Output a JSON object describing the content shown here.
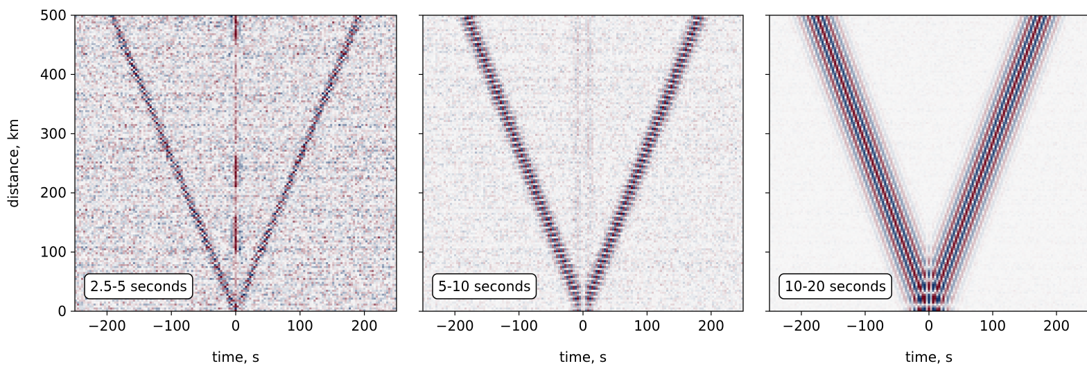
{
  "chart_data": [
    {
      "type": "heatmap",
      "label": "2.5-5 seconds",
      "xlabel": "time, s",
      "ylabel": "distance, km",
      "xlim": [
        -250,
        250
      ],
      "ylim": [
        0,
        500
      ],
      "xticks": [
        -200,
        -100,
        0,
        100,
        200
      ],
      "yticks": [
        0,
        100,
        200,
        300,
        400,
        500
      ],
      "colormap": "diverging red-white-blue",
      "moveout_velocity_km_s": 2.6,
      "noise_level": 0.55,
      "central_arrival": true,
      "wavelet_period_s": 4
    },
    {
      "type": "heatmap",
      "label": "5-10 seconds",
      "xlabel": "time, s",
      "ylabel": "",
      "xlim": [
        -250,
        250
      ],
      "ylim": [
        0,
        500
      ],
      "xticks": [
        -200,
        -100,
        0,
        100,
        200
      ],
      "yticks": [
        0,
        100,
        200,
        300,
        400,
        500
      ],
      "colormap": "diverging red-white-blue",
      "moveout_velocity_km_s": 2.75,
      "noise_level": 0.22,
      "central_arrival": true,
      "wavelet_period_s": 7
    },
    {
      "type": "heatmap",
      "label": "10-20 seconds",
      "xlabel": "time, s",
      "ylabel": "",
      "xlim": [
        -250,
        250
      ],
      "ylim": [
        0,
        500
      ],
      "xticks": [
        -200,
        -100,
        0,
        100,
        200
      ],
      "yticks": [
        0,
        100,
        200,
        300,
        400,
        500
      ],
      "colormap": "diverging red-white-blue",
      "moveout_velocity_km_s": 2.85,
      "noise_level": 0.05,
      "central_arrival": false,
      "wavelet_period_s": 15
    }
  ],
  "colors": {
    "positive": "#6b0018",
    "negative": "#0d2f66",
    "background": "#f7f7f7"
  }
}
